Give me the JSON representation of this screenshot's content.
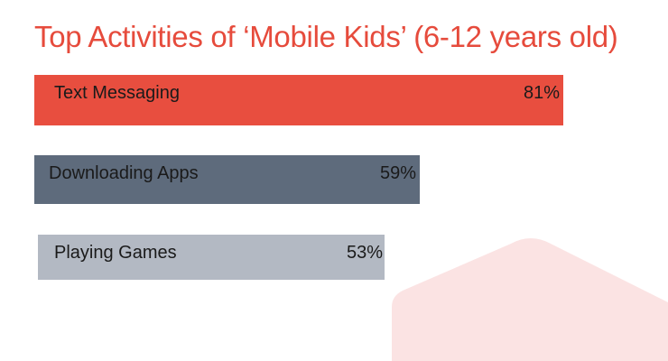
{
  "chart_data": {
    "type": "bar",
    "orientation": "horizontal",
    "title": "Top Activities of ‘Mobile Kids’ (6-12 years old)",
    "categories": [
      "Text Messaging",
      "Downloading Apps",
      "Playing Games"
    ],
    "values": [
      81,
      59,
      53
    ],
    "value_labels": [
      "81%",
      "59%",
      "53%"
    ],
    "unit": "%",
    "grid": false,
    "colors": {
      "title": "#e64b3c",
      "bars": [
        "#e84e3f",
        "#5e6b7c",
        "#b3b9c3"
      ],
      "background_shape": "#fbe3e3"
    }
  }
}
